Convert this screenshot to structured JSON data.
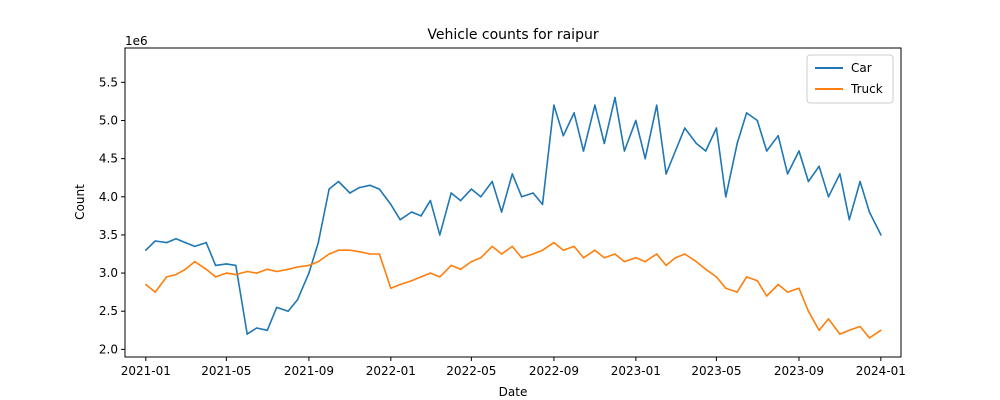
{
  "chart_data": {
    "type": "line",
    "title": "Vehicle counts for raipur",
    "xlabel": "Date",
    "ylabel": "Count",
    "y_offset_label": "1e6",
    "xlim": [
      "2020-12-01",
      "2024-01-31"
    ],
    "ylim": [
      1.9,
      5.95
    ],
    "x_ticks": [
      "2021-01",
      "2021-05",
      "2021-09",
      "2022-01",
      "2022-05",
      "2022-09",
      "2023-01",
      "2023-05",
      "2023-09",
      "2024-01"
    ],
    "y_ticks": [
      2.0,
      2.5,
      3.0,
      3.5,
      4.0,
      4.5,
      5.0,
      5.5
    ],
    "y_tick_labels": [
      "2.0",
      "2.5",
      "3.0",
      "3.5",
      "4.0",
      "4.5",
      "5.0",
      "5.5"
    ],
    "grid": false,
    "legend_position": "top-right",
    "series": [
      {
        "name": "Car",
        "color": "#1f77b4",
        "points": [
          [
            "2021-01-01",
            3.3
          ],
          [
            "2021-01-15",
            3.42
          ],
          [
            "2021-02-01",
            3.4
          ],
          [
            "2021-02-15",
            3.45
          ],
          [
            "2021-03-01",
            3.4
          ],
          [
            "2021-03-15",
            3.35
          ],
          [
            "2021-04-01",
            3.4
          ],
          [
            "2021-04-15",
            3.1
          ],
          [
            "2021-05-01",
            3.12
          ],
          [
            "2021-05-15",
            3.1
          ],
          [
            "2021-06-01",
            2.2
          ],
          [
            "2021-06-15",
            2.28
          ],
          [
            "2021-07-01",
            2.25
          ],
          [
            "2021-07-15",
            2.55
          ],
          [
            "2021-08-01",
            2.5
          ],
          [
            "2021-08-15",
            2.65
          ],
          [
            "2021-09-01",
            3.0
          ],
          [
            "2021-09-15",
            3.4
          ],
          [
            "2021-10-01",
            4.1
          ],
          [
            "2021-10-15",
            4.2
          ],
          [
            "2021-11-01",
            4.05
          ],
          [
            "2021-11-15",
            4.12
          ],
          [
            "2021-12-01",
            4.15
          ],
          [
            "2021-12-15",
            4.1
          ],
          [
            "2022-01-01",
            3.9
          ],
          [
            "2022-01-15",
            3.7
          ],
          [
            "2022-02-01",
            3.8
          ],
          [
            "2022-02-15",
            3.75
          ],
          [
            "2022-03-01",
            3.95
          ],
          [
            "2022-03-15",
            3.5
          ],
          [
            "2022-04-01",
            4.05
          ],
          [
            "2022-04-15",
            3.95
          ],
          [
            "2022-05-01",
            4.1
          ],
          [
            "2022-05-15",
            4.0
          ],
          [
            "2022-06-01",
            4.2
          ],
          [
            "2022-06-15",
            3.8
          ],
          [
            "2022-07-01",
            4.3
          ],
          [
            "2022-07-15",
            4.0
          ],
          [
            "2022-08-01",
            4.05
          ],
          [
            "2022-08-15",
            3.9
          ],
          [
            "2022-09-01",
            5.2
          ],
          [
            "2022-09-15",
            4.8
          ],
          [
            "2022-10-01",
            5.1
          ],
          [
            "2022-10-15",
            4.6
          ],
          [
            "2022-11-01",
            5.2
          ],
          [
            "2022-11-15",
            4.7
          ],
          [
            "2022-12-01",
            5.3
          ],
          [
            "2022-12-15",
            4.6
          ],
          [
            "2023-01-01",
            5.0
          ],
          [
            "2023-01-15",
            4.5
          ],
          [
            "2023-02-01",
            5.2
          ],
          [
            "2023-02-15",
            4.3
          ],
          [
            "2023-03-01",
            4.6
          ],
          [
            "2023-03-15",
            4.9
          ],
          [
            "2023-04-01",
            4.7
          ],
          [
            "2023-04-15",
            4.6
          ],
          [
            "2023-05-01",
            4.9
          ],
          [
            "2023-05-15",
            4.0
          ],
          [
            "2023-06-01",
            4.7
          ],
          [
            "2023-06-15",
            5.1
          ],
          [
            "2023-07-01",
            5.0
          ],
          [
            "2023-07-15",
            4.6
          ],
          [
            "2023-08-01",
            4.8
          ],
          [
            "2023-08-15",
            4.3
          ],
          [
            "2023-09-01",
            4.6
          ],
          [
            "2023-09-15",
            4.2
          ],
          [
            "2023-10-01",
            4.4
          ],
          [
            "2023-10-15",
            4.0
          ],
          [
            "2023-11-01",
            4.3
          ],
          [
            "2023-11-15",
            3.7
          ],
          [
            "2023-12-01",
            4.2
          ],
          [
            "2023-12-15",
            3.8
          ],
          [
            "2024-01-01",
            3.5
          ]
        ]
      },
      {
        "name": "Truck",
        "color": "#ff7f0e",
        "points": [
          [
            "2021-01-01",
            2.85
          ],
          [
            "2021-01-15",
            2.75
          ],
          [
            "2021-02-01",
            2.95
          ],
          [
            "2021-02-15",
            2.98
          ],
          [
            "2021-03-01",
            3.05
          ],
          [
            "2021-03-15",
            3.15
          ],
          [
            "2021-04-01",
            3.05
          ],
          [
            "2021-04-15",
            2.95
          ],
          [
            "2021-05-01",
            3.0
          ],
          [
            "2021-05-15",
            2.98
          ],
          [
            "2021-06-01",
            3.02
          ],
          [
            "2021-06-15",
            3.0
          ],
          [
            "2021-07-01",
            3.05
          ],
          [
            "2021-07-15",
            3.02
          ],
          [
            "2021-08-01",
            3.05
          ],
          [
            "2021-08-15",
            3.08
          ],
          [
            "2021-09-01",
            3.1
          ],
          [
            "2021-09-15",
            3.15
          ],
          [
            "2021-10-01",
            3.25
          ],
          [
            "2021-10-15",
            3.3
          ],
          [
            "2021-11-01",
            3.3
          ],
          [
            "2021-11-15",
            3.28
          ],
          [
            "2021-12-01",
            3.25
          ],
          [
            "2021-12-15",
            3.25
          ],
          [
            "2022-01-01",
            2.8
          ],
          [
            "2022-01-15",
            2.85
          ],
          [
            "2022-02-01",
            2.9
          ],
          [
            "2022-02-15",
            2.95
          ],
          [
            "2022-03-01",
            3.0
          ],
          [
            "2022-03-15",
            2.95
          ],
          [
            "2022-04-01",
            3.1
          ],
          [
            "2022-04-15",
            3.05
          ],
          [
            "2022-05-01",
            3.15
          ],
          [
            "2022-05-15",
            3.2
          ],
          [
            "2022-06-01",
            3.35
          ],
          [
            "2022-06-15",
            3.25
          ],
          [
            "2022-07-01",
            3.35
          ],
          [
            "2022-07-15",
            3.2
          ],
          [
            "2022-08-01",
            3.25
          ],
          [
            "2022-08-15",
            3.3
          ],
          [
            "2022-09-01",
            3.4
          ],
          [
            "2022-09-15",
            3.3
          ],
          [
            "2022-10-01",
            3.35
          ],
          [
            "2022-10-15",
            3.2
          ],
          [
            "2022-11-01",
            3.3
          ],
          [
            "2022-11-15",
            3.2
          ],
          [
            "2022-12-01",
            3.25
          ],
          [
            "2022-12-15",
            3.15
          ],
          [
            "2023-01-01",
            3.2
          ],
          [
            "2023-01-15",
            3.15
          ],
          [
            "2023-02-01",
            3.25
          ],
          [
            "2023-02-15",
            3.1
          ],
          [
            "2023-03-01",
            3.2
          ],
          [
            "2023-03-15",
            3.25
          ],
          [
            "2023-04-01",
            3.15
          ],
          [
            "2023-04-15",
            3.05
          ],
          [
            "2023-05-01",
            2.95
          ],
          [
            "2023-05-15",
            2.8
          ],
          [
            "2023-06-01",
            2.75
          ],
          [
            "2023-06-15",
            2.95
          ],
          [
            "2023-07-01",
            2.9
          ],
          [
            "2023-07-15",
            2.7
          ],
          [
            "2023-08-01",
            2.85
          ],
          [
            "2023-08-15",
            2.75
          ],
          [
            "2023-09-01",
            2.8
          ],
          [
            "2023-09-15",
            2.5
          ],
          [
            "2023-10-01",
            2.25
          ],
          [
            "2023-10-15",
            2.4
          ],
          [
            "2023-11-01",
            2.2
          ],
          [
            "2023-11-15",
            2.25
          ],
          [
            "2023-12-01",
            2.3
          ],
          [
            "2023-12-15",
            2.15
          ],
          [
            "2024-01-01",
            2.25
          ]
        ]
      }
    ]
  }
}
